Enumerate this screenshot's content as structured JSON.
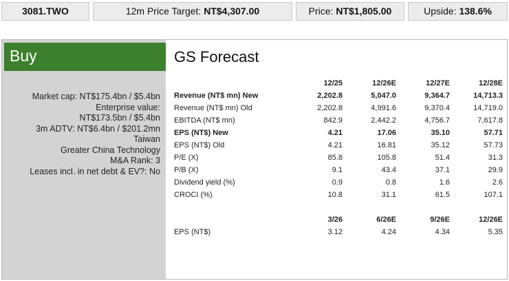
{
  "header": {
    "ticker": "3081.TWO",
    "price_target_label": "12m Price Target:",
    "price_target_value": "NT$4,307.00",
    "price_label": "Price:",
    "price_value": "NT$1,805.00",
    "upside_label": "Upside:",
    "upside_value": "138.6%"
  },
  "rating": "Buy",
  "company_info": [
    "Market cap: NT$175.4bn / $5.4bn",
    "Enterprise value:",
    "NT$173.5bn / $5.4bn",
    "3m ADTV: NT$6.4bn / $201.2mn",
    "Taiwan",
    "Greater China Technology",
    "M&A Rank: 3",
    "Leases incl. in net debt & EV?: No"
  ],
  "forecast": {
    "title": "GS Forecast",
    "annual_table": {
      "columns": [
        "12/25",
        "12/26E",
        "12/27E",
        "12/28E"
      ],
      "rows": [
        {
          "label": "Revenue (NT$ mn) New",
          "bold": true,
          "values": [
            "2,202.8",
            "5,047.0",
            "9,364.7",
            "14,713.3"
          ]
        },
        {
          "label": "Revenue (NT$ mn) Old",
          "bold": false,
          "values": [
            "2,202.8",
            "4,991.6",
            "9,370.4",
            "14,719.0"
          ]
        },
        {
          "label": "EBITDA (NT$ mn)",
          "bold": false,
          "values": [
            "842.9",
            "2,442.2",
            "4,756.7",
            "7,617.8"
          ]
        },
        {
          "label": "EPS (NT$) New",
          "bold": true,
          "values": [
            "4.21",
            "17.06",
            "35.10",
            "57.71"
          ]
        },
        {
          "label": "EPS (NT$) Old",
          "bold": false,
          "values": [
            "4.21",
            "16.81",
            "35.12",
            "57.73"
          ]
        },
        {
          "label": "P/E (X)",
          "bold": false,
          "values": [
            "85.8",
            "105.8",
            "51.4",
            "31.3"
          ]
        },
        {
          "label": "P/B (X)",
          "bold": false,
          "values": [
            "9.1",
            "43.4",
            "37.1",
            "29.9"
          ]
        },
        {
          "label": "Dividend yield (%)",
          "bold": false,
          "values": [
            "0.9",
            "0.8",
            "1.6",
            "2.6"
          ]
        },
        {
          "label": "CROCI (%)",
          "bold": false,
          "values": [
            "10.8",
            "31.1",
            "61.5",
            "107.1"
          ]
        }
      ]
    },
    "quarterly_table": {
      "columns": [
        "3/26",
        "6/26E",
        "9/26E",
        "12/26E"
      ],
      "rows": [
        {
          "label": "EPS (NT$)",
          "bold": false,
          "values": [
            "3.12",
            "4.24",
            "4.34",
            "5.35"
          ]
        }
      ]
    }
  }
}
